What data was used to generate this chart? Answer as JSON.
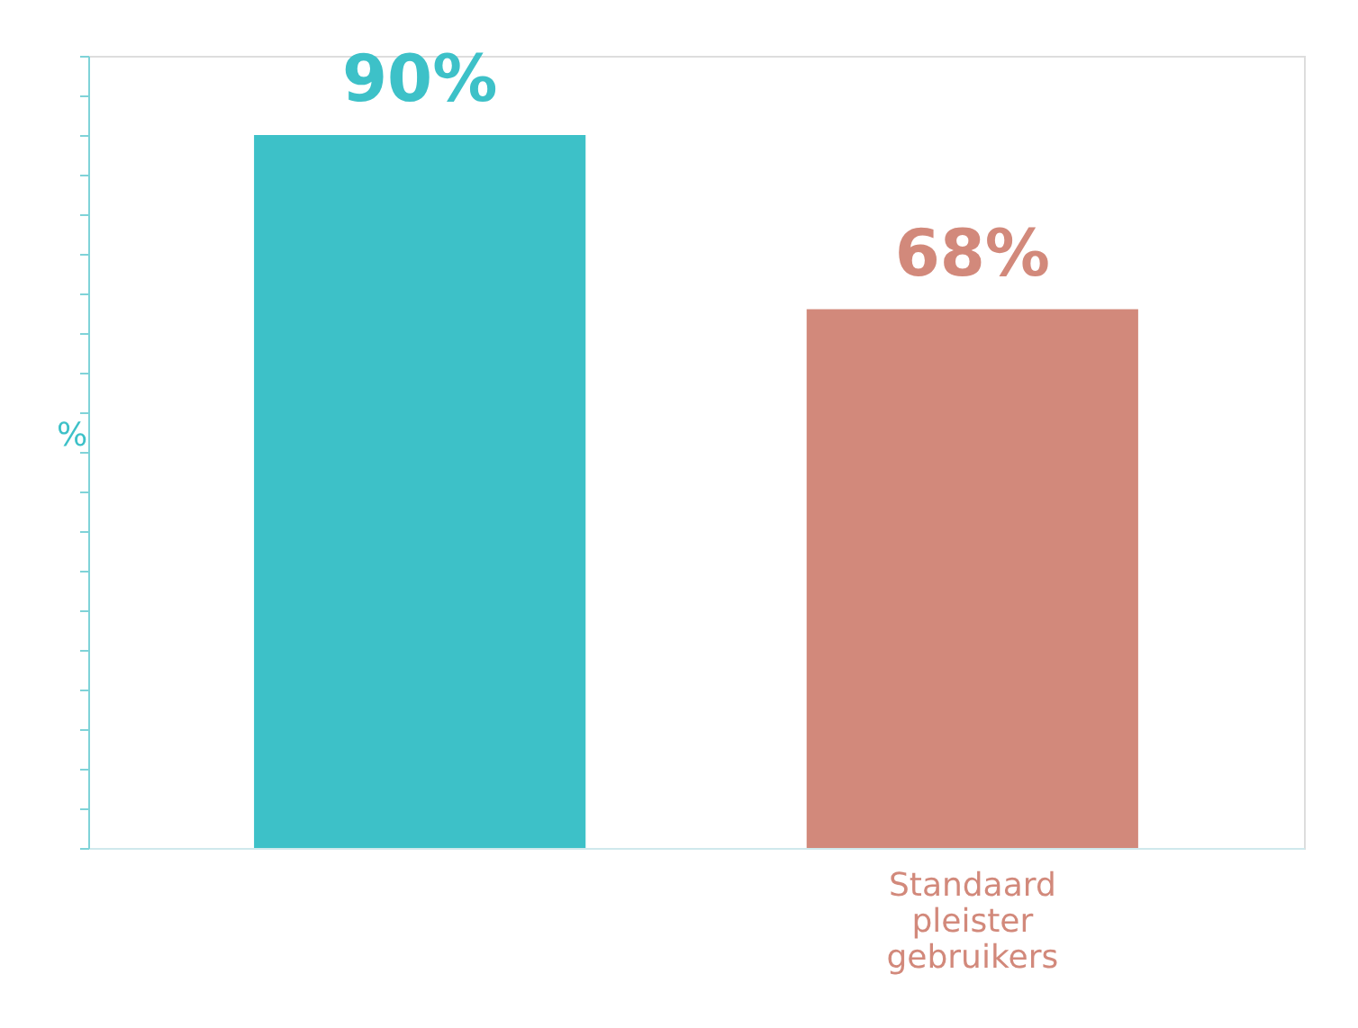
{
  "chart_data": {
    "type": "bar",
    "categories": [
      null,
      "Standaard pleister gebruikers"
    ],
    "values": [
      90,
      68
    ],
    "colors": [
      "#3dc1c8",
      "#d2897b"
    ],
    "value_labels": [
      "90%",
      "68%"
    ],
    "ylabel": "%",
    "ylim": [
      0,
      100
    ],
    "tick_labels": "x"
  }
}
